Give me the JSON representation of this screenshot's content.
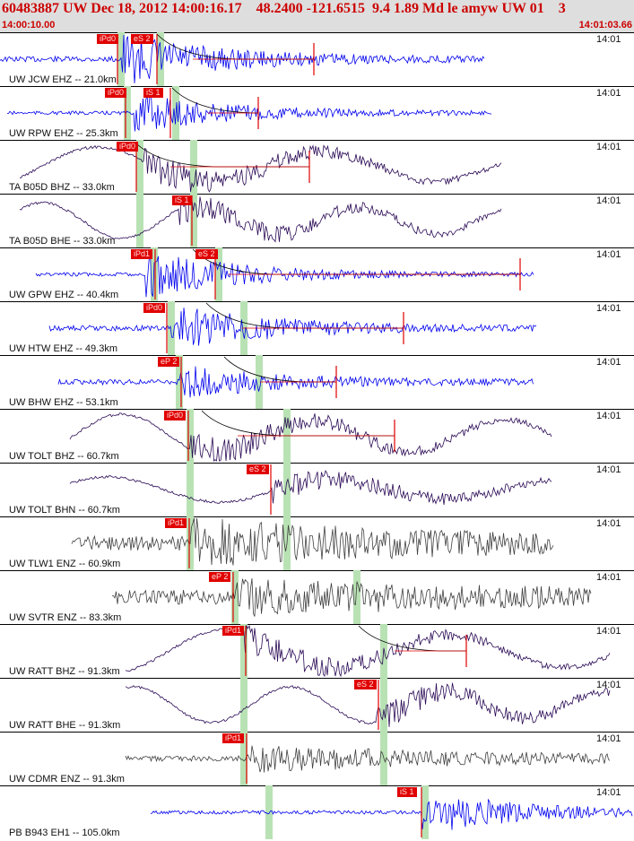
{
  "header": {
    "title": "60483887 UW Dec 18, 2012 14:00:16.17    48.2400 -121.6515  9.4 1.89 Md le amyw UW 01    3",
    "start_time": "14:00:10.00",
    "end_time": "14:01:03.66"
  },
  "colors": {
    "header_text": "#cc0000",
    "pick": "#e00000",
    "phase_window": "#b9e2b4",
    "vertical_trace": "#0000ee",
    "broadband_trace": "#2a0a55",
    "enz_trace": "#404040"
  },
  "traces": [
    {
      "label": "UW JCW EHZ -- 21.0km",
      "time_label": "14:01",
      "kind": "blue",
      "picks": [
        "iPd0",
        "eS 2"
      ]
    },
    {
      "label": "UW RPW EHZ -- 25.3km",
      "time_label": "14:01",
      "kind": "blue",
      "picks": [
        "iPd0",
        "iS 1"
      ]
    },
    {
      "label": "TA B05D BHZ -- 33.0km",
      "time_label": "14:01",
      "kind": "bb",
      "picks": [
        "iPd0"
      ]
    },
    {
      "label": "TA B05D BHE -- 33.0km",
      "time_label": "14:01",
      "kind": "bb",
      "picks": [
        "iS 1"
      ]
    },
    {
      "label": "UW GPW EHZ -- 40.4km",
      "time_label": "14:01",
      "kind": "blue",
      "picks": [
        "iPd1",
        "eS 2"
      ]
    },
    {
      "label": "UW HTW EHZ -- 49.3km",
      "time_label": "14:01",
      "kind": "blue",
      "picks": [
        "iPd0"
      ]
    },
    {
      "label": "UW BHW EHZ -- 53.1km",
      "time_label": "14:01",
      "kind": "blue",
      "picks": [
        "eP 2"
      ]
    },
    {
      "label": "UW TOLT BHZ -- 60.7km",
      "time_label": "14:01",
      "kind": "bb",
      "picks": [
        "iPd0"
      ]
    },
    {
      "label": "UW TOLT BHN -- 60.7km",
      "time_label": "14:01",
      "kind": "bb",
      "picks": [
        "eS 2"
      ]
    },
    {
      "label": "UW TLW1 ENZ -- 60.9km",
      "time_label": "14:01",
      "kind": "enz",
      "picks": [
        "iPd1"
      ]
    },
    {
      "label": "UW SVTR ENZ -- 83.3km",
      "time_label": "14:01",
      "kind": "enz",
      "picks": [
        "eP 2"
      ]
    },
    {
      "label": "UW RATT BHZ -- 91.3km",
      "time_label": "14:01",
      "kind": "bb",
      "picks": [
        "iPd1"
      ]
    },
    {
      "label": "UW RATT BHE -- 91.3km",
      "time_label": "14:01",
      "kind": "bb",
      "picks": [
        "eS 2"
      ]
    },
    {
      "label": "UW CDMR ENZ -- 91.3km",
      "time_label": "14:01",
      "kind": "enz",
      "picks": [
        "iPd1"
      ]
    },
    {
      "label": "PB B943 EH1 -- 105.0km",
      "time_label": "14:01",
      "kind": "blue",
      "picks": [
        "iS 1"
      ]
    }
  ]
}
